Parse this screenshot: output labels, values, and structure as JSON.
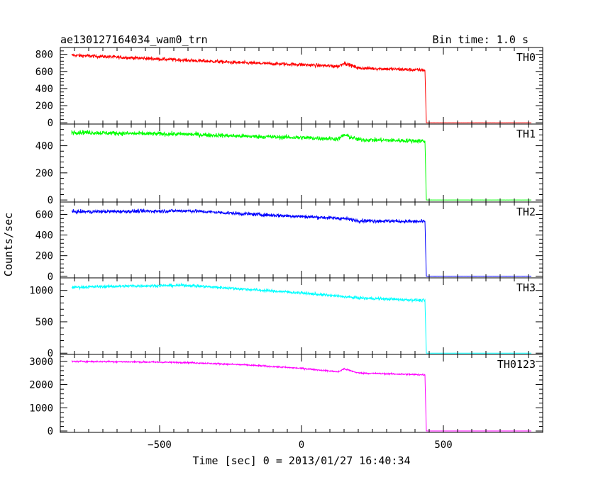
{
  "chart_data": {
    "type": "line",
    "title": "ae130127164034_wam0_trn",
    "bin_time": "Bin time: 1.0 s",
    "xlabel": "Time [sec] 0 = 2013/01/27 16:40:34",
    "ylabel": "Counts/sec",
    "xlim": [
      -850,
      850
    ],
    "x_ticks": [
      -500,
      0,
      500
    ],
    "x_tick_labels": [
      "−500",
      "0",
      "500"
    ],
    "event_start": -810,
    "event_end": 810,
    "drop_time": 440,
    "panels": [
      {
        "name": "TH0",
        "color": "#ff0000",
        "ylim": [
          -15,
          880
        ],
        "yticks": [
          0,
          200,
          400,
          600,
          800
        ],
        "points": [
          [
            -810,
            790
          ],
          [
            -600,
            760
          ],
          [
            -400,
            730
          ],
          [
            -200,
            700
          ],
          [
            0,
            680
          ],
          [
            130,
            660
          ],
          [
            150,
            700
          ],
          [
            200,
            640
          ],
          [
            435,
            615
          ],
          [
            440,
            0
          ],
          [
            810,
            0
          ]
        ],
        "noise": 35
      },
      {
        "name": "TH1",
        "color": "#00ff00",
        "ylim": [
          -15,
          560
        ],
        "yticks": [
          0,
          200,
          400
        ],
        "points": [
          [
            -810,
            500
          ],
          [
            -600,
            490
          ],
          [
            -400,
            485
          ],
          [
            -200,
            470
          ],
          [
            0,
            460
          ],
          [
            130,
            450
          ],
          [
            150,
            480
          ],
          [
            200,
            445
          ],
          [
            435,
            435
          ],
          [
            440,
            0
          ],
          [
            810,
            0
          ]
        ],
        "noise": 28
      },
      {
        "name": "TH2",
        "color": "#0000ff",
        "ylim": [
          -15,
          720
        ],
        "yticks": [
          0,
          200,
          400,
          600
        ],
        "points": [
          [
            -810,
            625
          ],
          [
            -600,
            630
          ],
          [
            -400,
            635
          ],
          [
            -200,
            605
          ],
          [
            0,
            580
          ],
          [
            150,
            560
          ],
          [
            200,
            540
          ],
          [
            435,
            530
          ],
          [
            440,
            0
          ],
          [
            810,
            0
          ]
        ],
        "noise": 30
      },
      {
        "name": "TH3",
        "color": "#00ffff",
        "ylim": [
          -20,
          1200
        ],
        "yticks": [
          0,
          500,
          1000
        ],
        "points": [
          [
            -810,
            1050
          ],
          [
            -600,
            1070
          ],
          [
            -400,
            1080
          ],
          [
            -200,
            1020
          ],
          [
            0,
            960
          ],
          [
            200,
            880
          ],
          [
            435,
            840
          ],
          [
            440,
            0
          ],
          [
            810,
            0
          ]
        ],
        "noise": 40
      },
      {
        "name": "TH0123",
        "color": "#ff00ff",
        "ylim": [
          -60,
          3300
        ],
        "yticks": [
          0,
          1000,
          2000,
          3000
        ],
        "points": [
          [
            -810,
            3000
          ],
          [
            -600,
            2980
          ],
          [
            -400,
            2950
          ],
          [
            -200,
            2850
          ],
          [
            0,
            2700
          ],
          [
            130,
            2550
          ],
          [
            150,
            2680
          ],
          [
            200,
            2500
          ],
          [
            435,
            2420
          ],
          [
            440,
            0
          ],
          [
            810,
            0
          ]
        ],
        "noise": 55
      }
    ]
  }
}
